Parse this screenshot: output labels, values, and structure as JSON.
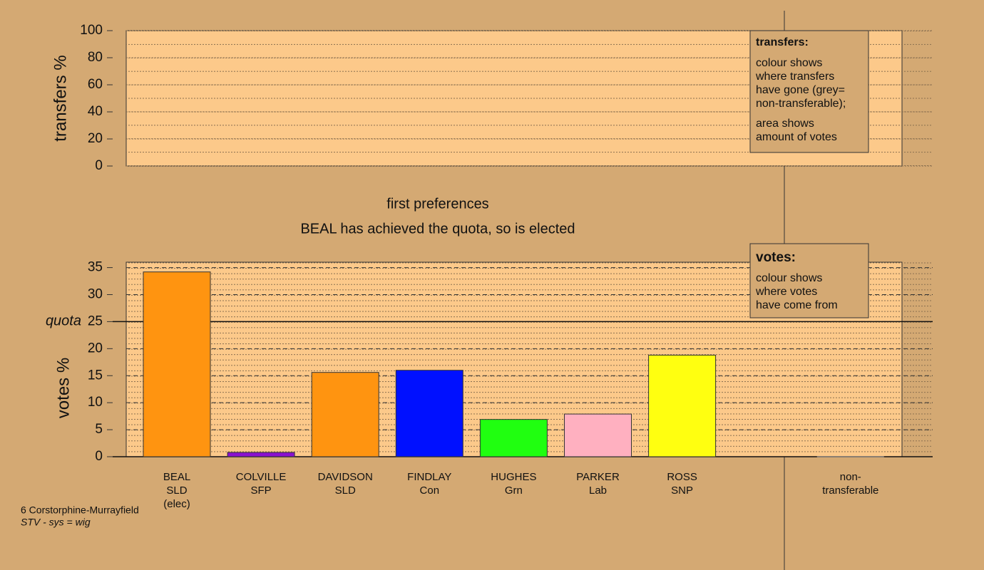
{
  "chart_data": [
    {
      "type": "transfers",
      "ylabel": "transfers %",
      "ylim": [
        0,
        100
      ],
      "yticks": [
        0,
        20,
        40,
        60,
        80,
        100
      ],
      "legend": {
        "title": "transfers:",
        "lines": [
          "colour shows",
          "where transfers",
          "have gone (grey=",
          "non-transferable);",
          "area shows",
          "amount of votes"
        ]
      }
    },
    {
      "type": "bar",
      "title": "first preferences",
      "subtitle": "BEAL has achieved the quota, so is elected",
      "ylabel": "votes %",
      "ylim": [
        0,
        36
      ],
      "yticks": [
        0,
        5,
        10,
        15,
        20,
        25,
        30,
        35
      ],
      "quota": {
        "label": "quota",
        "value": 25
      },
      "categories": [
        [
          "BEAL",
          "SLD",
          "(elec)"
        ],
        [
          "COLVILLE",
          "SFP"
        ],
        [
          "DAVIDSON",
          "SLD"
        ],
        [
          "FINDLAY",
          "Con"
        ],
        [
          "HUGHES",
          "Grn"
        ],
        [
          "PARKER",
          "Lab"
        ],
        [
          "ROSS",
          "SNP"
        ],
        null,
        [
          "non-",
          "transferable"
        ]
      ],
      "values": [
        34.2,
        0.8,
        15.6,
        16.0,
        6.9,
        7.9,
        18.8,
        null,
        0
      ],
      "colors": [
        "#ff9410",
        "#8a10d0",
        "#ff9410",
        "#0010ff",
        "#20ff10",
        "#ffb0c0",
        "#ffff10",
        null,
        "#999999"
      ],
      "legend": {
        "title": "votes:",
        "lines": [
          "colour shows",
          "where votes",
          "have come from"
        ]
      }
    }
  ],
  "footer": {
    "lines": [
      "6 Corstorphine-Murrayfield",
      "STV - sys = wig"
    ]
  }
}
